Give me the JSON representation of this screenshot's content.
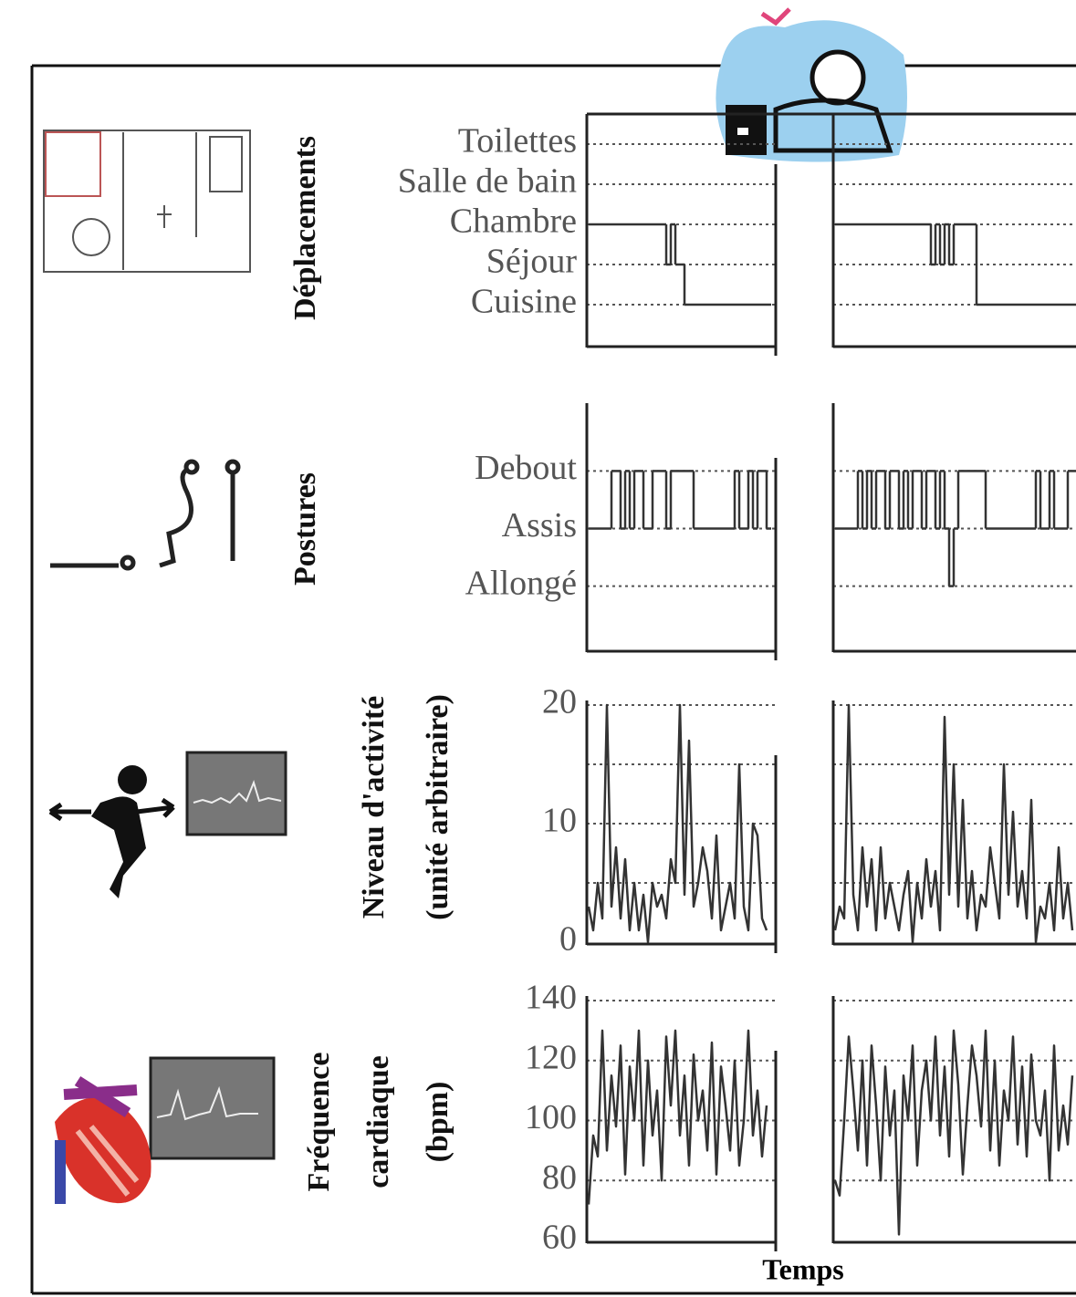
{
  "chart_data": [
    {
      "type": "step",
      "color": "#333",
      "ylabel": [
        "Déplacements"
      ],
      "ylim": [
        -1,
        4.75
      ],
      "yticks": [
        {
          "value": 0,
          "label": "Cuisine"
        },
        {
          "value": 1,
          "label": "Séjour"
        },
        {
          "value": 2,
          "label": "Chambre"
        },
        {
          "value": 3,
          "label": "Salle de bain"
        },
        {
          "value": 4,
          "label": "Toilettes"
        }
      ],
      "panels": [
        {
          "values": [
            2,
            2,
            2,
            2,
            2,
            2,
            2,
            2,
            2,
            2,
            2,
            2,
            2,
            2,
            2,
            2,
            2,
            1,
            2,
            1,
            1,
            0,
            0,
            0,
            0,
            0,
            0,
            0,
            0,
            0,
            0,
            0,
            0,
            0,
            0,
            0,
            0,
            0,
            0,
            0
          ]
        },
        {
          "values": [
            2,
            2,
            2,
            2,
            2,
            2,
            2,
            2,
            2,
            2,
            2,
            2,
            2,
            2,
            2,
            2,
            2,
            2,
            2,
            2,
            2,
            1,
            2,
            1,
            2,
            1,
            2,
            2,
            2,
            2,
            2,
            0,
            0,
            0,
            0,
            0,
            0,
            0,
            0,
            0,
            0,
            0,
            0,
            0,
            0,
            0,
            0,
            0,
            0,
            0,
            0,
            0,
            0
          ]
        }
      ]
    },
    {
      "type": "step",
      "color": "#333",
      "ylabel": [
        "Postures"
      ],
      "ylim": [
        -1.1,
        3.1
      ],
      "yticks": [
        {
          "value": 0,
          "label": "Allongé"
        },
        {
          "value": 1,
          "label": "Assis"
        },
        {
          "value": 2,
          "label": "Debout"
        }
      ],
      "panels": [
        {
          "values": [
            1,
            1,
            1,
            1,
            1,
            2,
            2,
            1,
            2,
            1,
            2,
            2,
            1,
            1,
            2,
            2,
            2,
            1,
            2,
            2,
            2,
            2,
            2,
            1,
            1,
            1,
            1,
            1,
            1,
            1,
            1,
            1,
            2,
            1,
            1,
            2,
            1,
            2,
            2,
            1
          ]
        },
        {
          "values": [
            1,
            1,
            1,
            1,
            1,
            2,
            1,
            2,
            1,
            2,
            2,
            1,
            2,
            2,
            1,
            2,
            1,
            2,
            2,
            1,
            2,
            2,
            1,
            2,
            1,
            0,
            1,
            2,
            2,
            2,
            2,
            2,
            2,
            1,
            1,
            1,
            1,
            1,
            1,
            1,
            1,
            1,
            1,
            1,
            2,
            1,
            1,
            2,
            1,
            1,
            1,
            2,
            2
          ]
        }
      ]
    },
    {
      "type": "line",
      "color": "#333",
      "ylabel": [
        "Niveau d'activité",
        "(unité arbitraire)"
      ],
      "ylim": [
        0,
        20
      ],
      "yticks": [
        0,
        10,
        20
      ],
      "minor_yticks": [
        5,
        15
      ],
      "panels": [
        {
          "values": [
            3,
            1,
            5,
            2,
            20,
            3,
            8,
            2,
            7,
            1,
            5,
            1,
            4,
            0,
            5,
            3,
            4,
            2,
            7,
            5,
            20,
            4,
            17,
            3,
            5,
            8,
            6,
            2,
            9,
            1,
            3,
            5,
            2,
            15,
            3,
            1,
            10,
            9,
            2,
            1
          ]
        },
        {
          "values": [
            1,
            3,
            2,
            20,
            4,
            1,
            8,
            3,
            7,
            1,
            8,
            2,
            5,
            3,
            1,
            4,
            6,
            0,
            5,
            2,
            7,
            3,
            6,
            1,
            19,
            4,
            15,
            3,
            12,
            2,
            6,
            1,
            4,
            3,
            8,
            5,
            2,
            15,
            4,
            11,
            3,
            6,
            2,
            12,
            0,
            3,
            2,
            5,
            1,
            8,
            2,
            5,
            1
          ]
        }
      ]
    },
    {
      "type": "line",
      "color": "#333",
      "ylabel": [
        "Fréquence",
        "cardiaque",
        "(bpm)"
      ],
      "xlabel": "Temps",
      "ylim": [
        60,
        140
      ],
      "yticks": [
        60,
        80,
        100,
        120,
        140
      ],
      "panels": [
        {
          "values": [
            72,
            95,
            88,
            130,
            90,
            115,
            98,
            125,
            82,
            118,
            100,
            130,
            85,
            120,
            95,
            110,
            80,
            128,
            105,
            130,
            95,
            115,
            85,
            122,
            100,
            110,
            90,
            126,
            82,
            118,
            105,
            90,
            120,
            85,
            100,
            130,
            95,
            110,
            88,
            105
          ]
        },
        {
          "values": [
            80,
            75,
            100,
            128,
            110,
            90,
            120,
            85,
            125,
            105,
            80,
            118,
            95,
            110,
            62,
            115,
            100,
            125,
            85,
            110,
            120,
            100,
            128,
            95,
            118,
            88,
            130,
            112,
            82,
            105,
            125,
            115,
            98,
            130,
            90,
            120,
            85,
            110,
            100,
            128,
            92,
            118,
            88,
            122,
            100,
            95,
            110,
            80,
            125,
            90,
            105,
            92,
            115
          ]
        }
      ]
    }
  ]
}
